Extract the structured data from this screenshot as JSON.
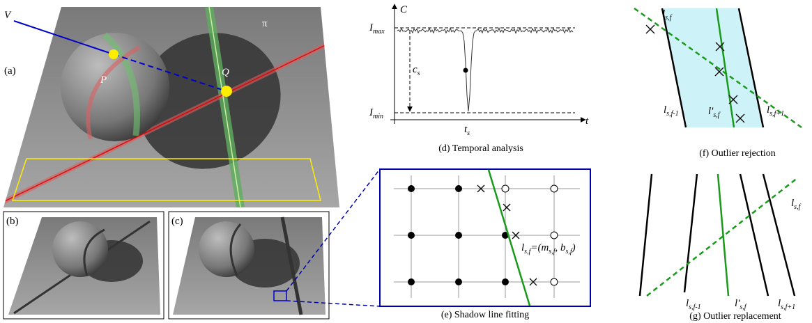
{
  "panel_a": {
    "view": "V",
    "plane": "π",
    "label": "(a)",
    "point_p": "P",
    "point_q": "Q"
  },
  "panel_b": {
    "label": "(b)"
  },
  "panel_c": {
    "label": "(c)"
  },
  "panel_d": {
    "axis_y": "C",
    "axis_x": "t",
    "i_max": {
      "main": "I",
      "sub": "max"
    },
    "i_min": {
      "main": "I",
      "sub": "min"
    },
    "c_s": {
      "main": "c",
      "sub": "s"
    },
    "t_s": {
      "main": "t",
      "sub": "s"
    },
    "caption": "(d) Temporal analysis"
  },
  "panel_e": {
    "equation": [
      "l",
      "s,f",
      "=(m",
      "s,f",
      ", b",
      "s,f",
      ")"
    ],
    "caption": "(e) Shadow line fitting"
  },
  "panel_f": {
    "line": {
      "main": "l",
      "sub": "s,f"
    },
    "prev": {
      "main": "l",
      "sub": "s,f-1"
    },
    "fitted": {
      "main": "l'",
      "sub": "s,f"
    },
    "next": {
      "main": "l",
      "sub": "s,f+1"
    },
    "caption": "(f) Outlier rejection"
  },
  "panel_g": {
    "line": {
      "main": "l",
      "sub": "s,f"
    },
    "prev": {
      "main": "l",
      "sub": "s,f-1"
    },
    "fitted": {
      "main": "l'",
      "sub": "s,f"
    },
    "next": {
      "main": "l",
      "sub": "s,f+1"
    },
    "caption": "(g) Outlier replacement"
  }
}
